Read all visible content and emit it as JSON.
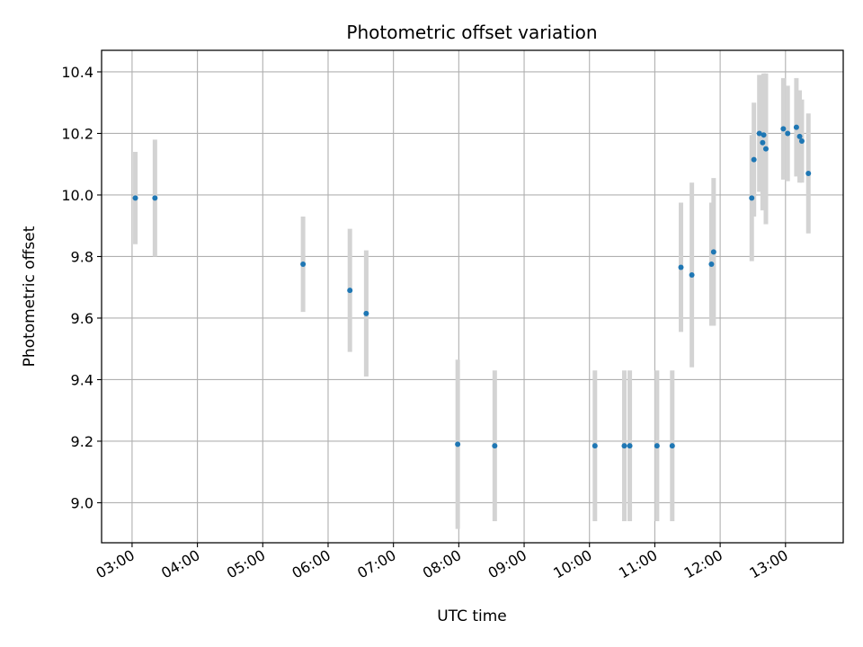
{
  "chart_data": {
    "type": "scatter",
    "title": "Photometric offset variation",
    "xlabel": "UTC time",
    "ylabel": "Photometric offset",
    "x_tick_labels": [
      "03:00",
      "04:00",
      "05:00",
      "06:00",
      "07:00",
      "08:00",
      "09:00",
      "10:00",
      "11:00",
      "12:00",
      "13:00"
    ],
    "y_tick_labels": [
      "9.0",
      "9.2",
      "9.4",
      "9.6",
      "9.8",
      "10.0",
      "10.2",
      "10.4"
    ],
    "xlim": [
      "02:32",
      "13:53"
    ],
    "ylim": [
      8.87,
      10.47
    ],
    "grid": true,
    "marker_color": "#1f77b4",
    "errorbar_color": "#d3d3d3",
    "points": [
      {
        "x": "03:03",
        "y": 9.99,
        "yerr": 0.15
      },
      {
        "x": "03:21",
        "y": 9.99,
        "yerr": 0.19
      },
      {
        "x": "05:37",
        "y": 9.775,
        "yerr": 0.155
      },
      {
        "x": "06:20",
        "y": 9.69,
        "yerr": 0.2
      },
      {
        "x": "06:35",
        "y": 9.615,
        "yerr": 0.205
      },
      {
        "x": "07:59",
        "y": 9.19,
        "yerr": 0.275
      },
      {
        "x": "08:33",
        "y": 9.185,
        "yerr": 0.245
      },
      {
        "x": "10:05",
        "y": 9.185,
        "yerr": 0.245
      },
      {
        "x": "10:32",
        "y": 9.185,
        "yerr": 0.245
      },
      {
        "x": "10:37",
        "y": 9.185,
        "yerr": 0.245
      },
      {
        "x": "11:02",
        "y": 9.185,
        "yerr": 0.245
      },
      {
        "x": "11:16",
        "y": 9.185,
        "yerr": 0.245
      },
      {
        "x": "11:24",
        "y": 9.765,
        "yerr": 0.21
      },
      {
        "x": "11:34",
        "y": 9.74,
        "yerr": 0.3
      },
      {
        "x": "11:52",
        "y": 9.775,
        "yerr": 0.2
      },
      {
        "x": "11:54",
        "y": 9.815,
        "yerr": 0.24
      },
      {
        "x": "12:29",
        "y": 9.99,
        "yerr": 0.205
      },
      {
        "x": "12:31",
        "y": 10.115,
        "yerr": 0.185
      },
      {
        "x": "12:36",
        "y": 10.2,
        "yerr": 0.19
      },
      {
        "x": "12:39",
        "y": 10.17,
        "yerr": 0.22
      },
      {
        "x": "12:40",
        "y": 10.195,
        "yerr": 0.2
      },
      {
        "x": "12:42",
        "y": 10.15,
        "yerr": 0.245
      },
      {
        "x": "12:58",
        "y": 10.215,
        "yerr": 0.165
      },
      {
        "x": "13:02",
        "y": 10.2,
        "yerr": 0.155
      },
      {
        "x": "13:10",
        "y": 10.22,
        "yerr": 0.16
      },
      {
        "x": "13:13",
        "y": 10.19,
        "yerr": 0.15
      },
      {
        "x": "13:15",
        "y": 10.175,
        "yerr": 0.135
      },
      {
        "x": "13:21",
        "y": 10.07,
        "yerr": 0.195
      }
    ]
  }
}
